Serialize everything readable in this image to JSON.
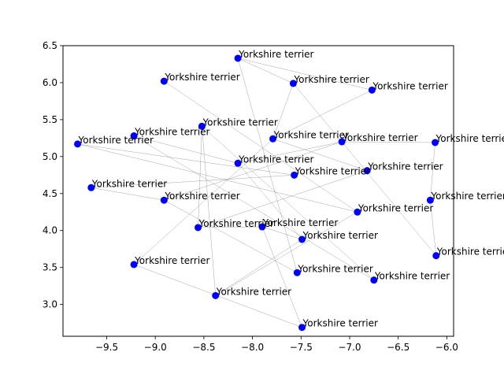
{
  "chart_data": {
    "type": "scatter",
    "title": "",
    "xlabel": "",
    "ylabel": "",
    "xlim": [
      -9.95,
      -5.93
    ],
    "ylim": [
      2.57,
      6.5
    ],
    "x_ticks": [
      -9.5,
      -9.0,
      -8.5,
      -8.0,
      -7.5,
      -7.0,
      -6.5,
      -6.0
    ],
    "x_tick_labels": [
      "−9.5",
      "−9.0",
      "−8.5",
      "−8.0",
      "−7.5",
      "−7.0",
      "−6.5",
      "−6.0"
    ],
    "y_ticks": [
      3.0,
      3.5,
      4.0,
      4.5,
      5.0,
      5.5,
      6.0,
      6.5
    ],
    "y_tick_labels": [
      "3.0",
      "3.5",
      "4.0",
      "4.5",
      "5.0",
      "5.5",
      "6.0",
      "6.5"
    ],
    "grid": false,
    "marker_color": "#0000ff",
    "edge_color": "#808080",
    "points": [
      {
        "x": -8.15,
        "y": 6.33,
        "label": "Yorkshire terrier"
      },
      {
        "x": -8.91,
        "y": 6.02,
        "label": "Yorkshire terrier"
      },
      {
        "x": -7.58,
        "y": 5.99,
        "label": "Yorkshire terrier"
      },
      {
        "x": -6.77,
        "y": 5.9,
        "label": "Yorkshire terrier"
      },
      {
        "x": -8.52,
        "y": 5.41,
        "label": "Yorkshire terrier"
      },
      {
        "x": -9.22,
        "y": 5.28,
        "label": "Yorkshire terrier"
      },
      {
        "x": -7.79,
        "y": 5.24,
        "label": "Yorkshire terrier"
      },
      {
        "x": -9.8,
        "y": 5.17,
        "label": "Yorkshire terrier"
      },
      {
        "x": -7.08,
        "y": 5.2,
        "label": "Yorkshire terrier"
      },
      {
        "x": -6.12,
        "y": 5.19,
        "label": "Yorkshire terrier"
      },
      {
        "x": -8.15,
        "y": 4.91,
        "label": "Yorkshire terrier"
      },
      {
        "x": -6.82,
        "y": 4.81,
        "label": "Yorkshire terrier"
      },
      {
        "x": -7.57,
        "y": 4.75,
        "label": "Yorkshire terrier"
      },
      {
        "x": -9.66,
        "y": 4.58,
        "label": "Yorkshire terrier"
      },
      {
        "x": -8.91,
        "y": 4.41,
        "label": "Yorkshire terrier"
      },
      {
        "x": -6.17,
        "y": 4.41,
        "label": "Yorkshire terrier"
      },
      {
        "x": -6.92,
        "y": 4.25,
        "label": "Yorkshire terrier"
      },
      {
        "x": -8.56,
        "y": 4.04,
        "label": "Yorkshire terrier"
      },
      {
        "x": -7.9,
        "y": 4.05,
        "label": "Yorkshire terrier"
      },
      {
        "x": -7.49,
        "y": 3.88,
        "label": "Yorkshire terrier"
      },
      {
        "x": -6.11,
        "y": 3.66,
        "label": "Yorkshire terrier"
      },
      {
        "x": -9.22,
        "y": 3.54,
        "label": "Yorkshire terrier"
      },
      {
        "x": -7.54,
        "y": 3.43,
        "label": "Yorkshire terrier"
      },
      {
        "x": -6.75,
        "y": 3.33,
        "label": "Yorkshire terrier"
      },
      {
        "x": -8.38,
        "y": 3.12,
        "label": "Yorkshire terrier"
      },
      {
        "x": -7.49,
        "y": 2.69,
        "label": "Yorkshire terrier"
      }
    ],
    "edges": [
      [
        0,
        2
      ],
      [
        0,
        3
      ],
      [
        0,
        22
      ],
      [
        1,
        16
      ],
      [
        2,
        6
      ],
      [
        2,
        20
      ],
      [
        3,
        6
      ],
      [
        4,
        17
      ],
      [
        4,
        24
      ],
      [
        4,
        23
      ],
      [
        5,
        10
      ],
      [
        5,
        23
      ],
      [
        6,
        11
      ],
      [
        6,
        21
      ],
      [
        7,
        12
      ],
      [
        7,
        16
      ],
      [
        8,
        9
      ],
      [
        8,
        14
      ],
      [
        8,
        10
      ],
      [
        9,
        15
      ],
      [
        10,
        19
      ],
      [
        11,
        17
      ],
      [
        12,
        13
      ],
      [
        13,
        14
      ],
      [
        14,
        22
      ],
      [
        15,
        20
      ],
      [
        16,
        24
      ],
      [
        17,
        18
      ],
      [
        18,
        19
      ],
      [
        18,
        25
      ],
      [
        19,
        24
      ],
      [
        21,
        25
      ]
    ]
  }
}
